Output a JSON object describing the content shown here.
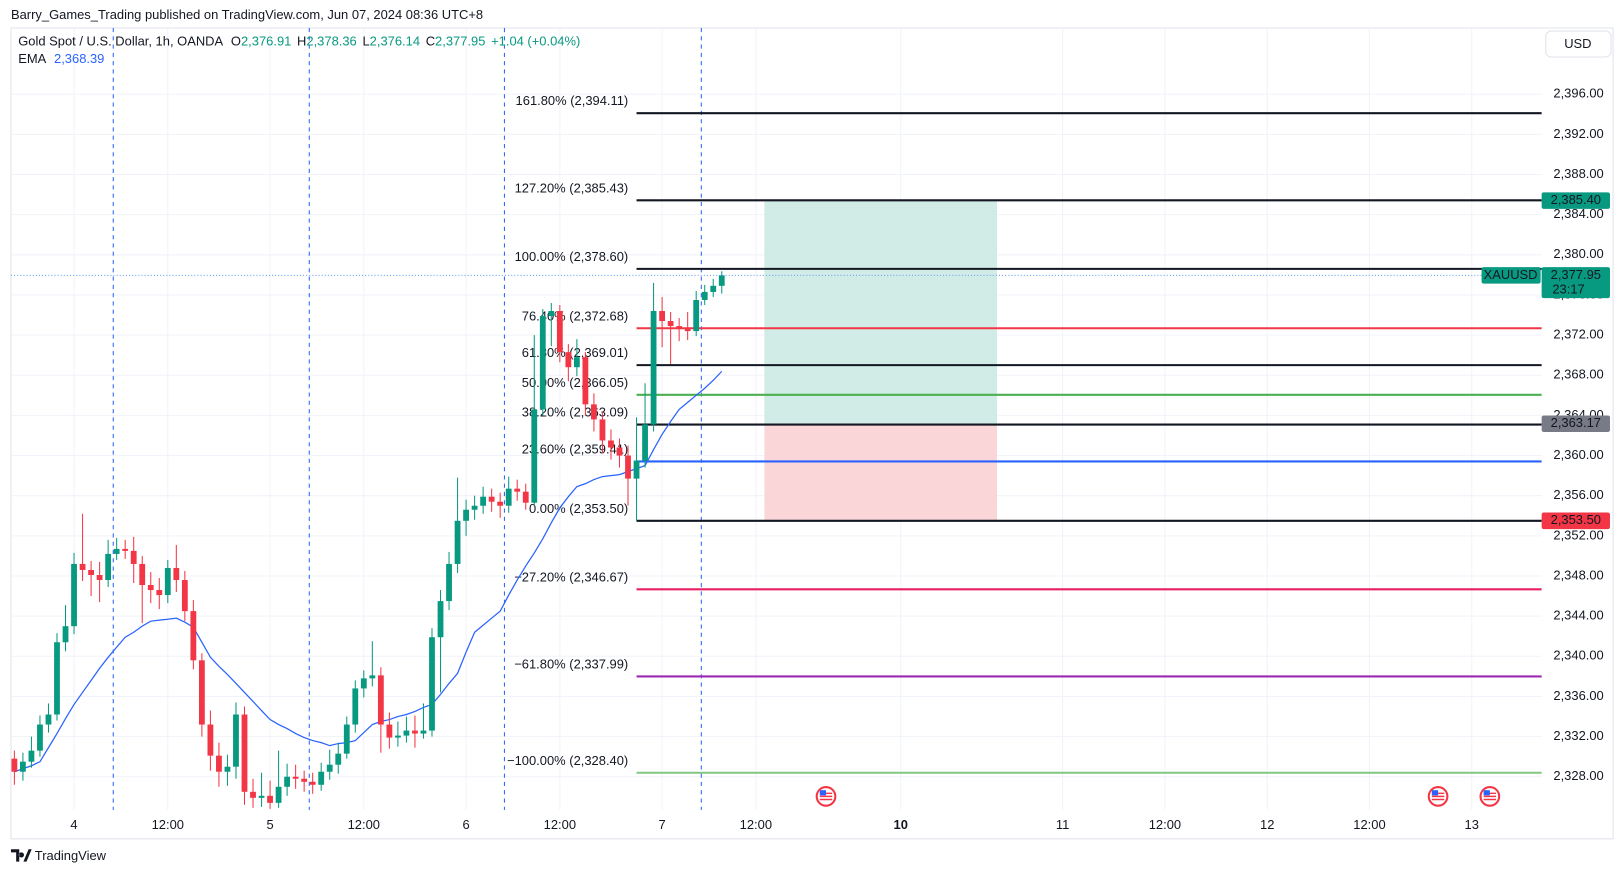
{
  "header": {
    "publisher": "Barry_Games_Trading published on TradingView.com, Jun 07, 2024 08:36 UTC+8",
    "currency": "USD",
    "brand": "TradingView"
  },
  "chart_data": {
    "type": "candlestick",
    "title": "Gold Spot / U.S. Dollar, 1h, OANDA",
    "ohlc_legend": [
      {
        "key": "O",
        "value": "2,376.91"
      },
      {
        "key": "H",
        "value": "2,378.36"
      },
      {
        "key": "L",
        "value": "2,376.14"
      },
      {
        "key": "C",
        "value": "2,377.95"
      }
    ],
    "change": "+1.04 (+0.04%)",
    "x": [
      -7,
      -6,
      -5,
      -4,
      -3,
      -2,
      -1,
      0,
      1,
      2,
      3,
      4,
      5,
      6,
      7,
      8,
      9,
      10,
      11,
      12,
      13,
      14,
      15,
      16,
      17,
      18,
      19,
      20,
      21,
      22,
      23,
      24,
      25,
      26,
      27,
      28,
      29,
      30,
      31,
      32,
      33,
      34,
      35,
      36,
      37,
      38,
      39,
      40,
      41,
      42,
      43,
      44,
      45,
      46,
      47,
      48,
      49,
      50,
      51,
      52,
      53,
      54,
      55,
      56,
      57,
      58,
      59,
      60,
      61,
      62,
      63,
      64,
      65,
      66,
      67,
      68,
      69,
      70,
      71,
      72,
      73,
      74,
      75,
      76
    ],
    "open": [
      2329.8,
      2328.5,
      2329.5,
      2330.6,
      2333.2,
      2334.2,
      2341.4,
      2343.0,
      2349.2,
      2348.6,
      2348.1,
      2347.6,
      2350.2,
      2350.7,
      2350.5,
      2349.2,
      2347.1,
      2346.6,
      2346.1,
      2348.8,
      2347.6,
      2344.5,
      2339.6,
      2333.2,
      2330.1,
      2328.5,
      2329.0,
      2334.2,
      2326.5,
      2325.9,
      2326.1,
      2325.4,
      2327.0,
      2328.0,
      2327.8,
      2327.5,
      2327.2,
      2328.5,
      2329.2,
      2330.3,
      2333.2,
      2336.8,
      2337.8,
      2338.1,
      2333.2,
      2331.9,
      2332.1,
      2332.6,
      2332.3,
      2332.6,
      2341.9,
      2345.5,
      2349.2,
      2353.5,
      2354.6,
      2355.0,
      2355.9,
      2355.4,
      2355.0,
      2356.7,
      2356.4,
      2355.3,
      2364.6,
      2373.9,
      2374.4,
      2370.3,
      2368.8,
      2369.8,
      2365.1,
      2363.6,
      2361.5,
      2360.8,
      2360.0,
      2357.7,
      2359.5,
      2363.1,
      2374.4,
      2373.4,
      2372.9,
      2372.6,
      2372.4,
      2375.5,
      2376.3,
      2376.91
    ],
    "high": [
      2330.6,
      2330.4,
      2332.0,
      2334.1,
      2335.3,
      2342.3,
      2345.1,
      2350.3,
      2354.2,
      2349.5,
      2349.4,
      2351.6,
      2351.8,
      2351.6,
      2351.9,
      2350.0,
      2348.4,
      2347.8,
      2349.6,
      2351.1,
      2348.5,
      2345.6,
      2340.3,
      2334.6,
      2331.4,
      2330.2,
      2335.4,
      2335.0,
      2327.8,
      2328.4,
      2327.6,
      2330.6,
      2329.3,
      2329.2,
      2328.6,
      2328.4,
      2329.4,
      2330.7,
      2331.4,
      2334.0,
      2337.6,
      2338.6,
      2341.5,
      2338.9,
      2334.4,
      2333.5,
      2334.0,
      2334.1,
      2335.3,
      2342.8,
      2346.6,
      2350.4,
      2357.8,
      2355.6,
      2356.0,
      2356.9,
      2356.7,
      2356.3,
      2357.9,
      2357.6,
      2357.2,
      2372.0,
      2374.6,
      2375.2,
      2375.0,
      2371.1,
      2371.6,
      2370.3,
      2366.2,
      2364.4,
      2362.6,
      2361.7,
      2361.0,
      2363.8,
      2367.2,
      2377.2,
      2375.8,
      2374.3,
      2373.7,
      2374.3,
      2376.4,
      2377.0,
      2377.6,
      2378.36
    ],
    "low": [
      2327.2,
      2327.6,
      2328.9,
      2330.0,
      2332.4,
      2333.6,
      2340.5,
      2342.2,
      2347.5,
      2346.0,
      2345.4,
      2346.9,
      2349.6,
      2349.7,
      2347.3,
      2343.3,
      2345.3,
      2344.7,
      2345.3,
      2346.4,
      2343.5,
      2338.7,
      2332.0,
      2328.6,
      2327.0,
      2327.1,
      2327.8,
      2325.2,
      2324.9,
      2325.0,
      2324.8,
      2324.9,
      2326.1,
      2326.8,
      2326.5,
      2326.3,
      2326.6,
      2327.7,
      2328.3,
      2329.8,
      2332.4,
      2335.9,
      2337.0,
      2330.4,
      2330.8,
      2331.0,
      2331.4,
      2330.9,
      2331.8,
      2332.0,
      2336.4,
      2344.6,
      2348.3,
      2352.0,
      2353.6,
      2354.2,
      2354.4,
      2353.8,
      2354.3,
      2355.5,
      2354.6,
      2355.0,
      2364.0,
      2370.9,
      2369.3,
      2367.4,
      2367.9,
      2364.0,
      2362.4,
      2360.2,
      2359.6,
      2358.8,
      2355.0,
      2353.5,
      2358.8,
      2362.4,
      2370.8,
      2369.1,
      2371.4,
      2371.5,
      2371.9,
      2375.0,
      2375.8,
      2376.14
    ],
    "close": [
      2328.5,
      2329.5,
      2330.6,
      2333.2,
      2334.2,
      2341.4,
      2343.0,
      2349.2,
      2348.6,
      2348.1,
      2347.6,
      2350.2,
      2350.7,
      2350.5,
      2349.2,
      2347.1,
      2346.6,
      2346.1,
      2348.8,
      2347.6,
      2344.5,
      2339.6,
      2333.2,
      2330.1,
      2328.5,
      2329.0,
      2334.2,
      2326.5,
      2325.9,
      2326.1,
      2325.4,
      2327.0,
      2328.0,
      2327.8,
      2327.5,
      2327.2,
      2328.5,
      2329.2,
      2330.3,
      2333.2,
      2336.8,
      2337.8,
      2338.1,
      2333.2,
      2331.9,
      2332.1,
      2332.6,
      2332.3,
      2332.6,
      2341.9,
      2345.5,
      2349.2,
      2353.5,
      2354.6,
      2355.0,
      2355.9,
      2355.4,
      2355.0,
      2356.7,
      2356.4,
      2355.3,
      2364.6,
      2373.9,
      2374.4,
      2370.3,
      2368.8,
      2369.8,
      2365.1,
      2363.6,
      2361.5,
      2360.8,
      2360.0,
      2357.7,
      2359.5,
      2363.1,
      2374.4,
      2373.4,
      2372.9,
      2372.6,
      2372.4,
      2375.5,
      2376.3,
      2376.91,
      2377.95
    ],
    "up_color": "#089981",
    "down_color": "#f23645",
    "series": [
      {
        "name": "EMA",
        "color": "#2962ff",
        "last_label": "2,368.39",
        "values": [
          2328.5,
          2328.8,
          2329.1,
          2329.5,
          2330.9,
          2332.3,
          2333.8,
          2335.2,
          2336.4,
          2337.6,
          2338.8,
          2339.9,
          2340.9,
          2341.9,
          2342.4,
          2343.0,
          2343.5,
          2343.6,
          2343.7,
          2343.8,
          2343.4,
          2342.9,
          2341.4,
          2339.9,
          2339.0,
          2338.2,
          2337.3,
          2336.4,
          2335.5,
          2334.6,
          2333.7,
          2333.2,
          2332.8,
          2332.3,
          2331.9,
          2331.6,
          2331.4,
          2331.1,
          2331.3,
          2331.4,
          2331.6,
          2332.4,
          2333.2,
          2333.5,
          2333.7,
          2334.0,
          2334.2,
          2334.5,
          2334.9,
          2335.2,
          2336.2,
          2337.3,
          2338.3,
          2340.4,
          2342.4,
          2343.1,
          2343.8,
          2344.5,
          2346.1,
          2347.6,
          2349.0,
          2350.3,
          2351.7,
          2353.3,
          2354.8,
          2355.9,
          2356.9,
          2357.2,
          2357.6,
          2357.9,
          2358.0,
          2358.1,
          2358.4,
          2358.7,
          2359.0,
          2360.6,
          2362.1,
          2363.4,
          2364.6,
          2365.3,
          2366.0,
          2366.7,
          2367.5,
          2368.39
        ]
      }
    ],
    "xlim": [
      -7.4,
      172.2
    ],
    "xticks": [
      {
        "value": 0,
        "label": "4"
      },
      {
        "value": 11,
        "label": "12:00"
      },
      {
        "value": 23,
        "label": "5"
      },
      {
        "value": 34,
        "label": "12:00"
      },
      {
        "value": 46,
        "label": "6"
      },
      {
        "value": 57,
        "label": "12:00"
      },
      {
        "value": 69,
        "label": "7"
      },
      {
        "value": 80,
        "label": "12:00"
      },
      {
        "value": 97,
        "label": "10"
      },
      {
        "value": 116,
        "label": "11"
      },
      {
        "value": 128,
        "label": "12:00"
      },
      {
        "value": 140,
        "label": "12"
      },
      {
        "value": 152,
        "label": "12:00"
      },
      {
        "value": 164,
        "label": "13"
      }
    ],
    "bold_xticks": [
      8
    ],
    "ylim": [
      2324.7,
      2402.6
    ],
    "yticks": [
      {
        "value": 2328,
        "label": "2,328.00"
      },
      {
        "value": 2332,
        "label": "2,332.00"
      },
      {
        "value": 2336,
        "label": "2,336.00"
      },
      {
        "value": 2340,
        "label": "2,340.00"
      },
      {
        "value": 2344,
        "label": "2,344.00"
      },
      {
        "value": 2348,
        "label": "2,348.00"
      },
      {
        "value": 2352,
        "label": "2,352.00"
      },
      {
        "value": 2356,
        "label": "2,356.00"
      },
      {
        "value": 2360,
        "label": "2,360.00"
      },
      {
        "value": 2364,
        "label": "2,364.00"
      },
      {
        "value": 2368,
        "label": "2,368.00"
      },
      {
        "value": 2372,
        "label": "2,372.00"
      },
      {
        "value": 2376,
        "label": "2,376.00"
      },
      {
        "value": 2380,
        "label": "2,380.00"
      },
      {
        "value": 2384,
        "label": "2,384.00"
      },
      {
        "value": 2388,
        "label": "2,388.00"
      },
      {
        "value": 2392,
        "label": "2,392.00"
      },
      {
        "value": 2396,
        "label": "2,396.00"
      }
    ],
    "grid": true,
    "vlines": [
      4.6,
      27.6,
      50.5,
      73.6
    ],
    "fib": {
      "x_start": 66.0,
      "x_end": 172.2,
      "levels": [
        {
          "label": "161.80% (2,394.11)",
          "value": 2394.11,
          "color": "#131722"
        },
        {
          "label": "127.20% (2,385.43)",
          "value": 2385.43,
          "color": "#131722"
        },
        {
          "label": "100.00% (2,378.60)",
          "value": 2378.6,
          "color": "#131722"
        },
        {
          "label": "76.40% (2,372.68)",
          "value": 2372.68,
          "color": "#f23645"
        },
        {
          "label": "61.80% (2,369.01)",
          "value": 2369.01,
          "color": "#131722"
        },
        {
          "label": "50.00% (2,366.05)",
          "value": 2366.05,
          "color": "#4caf50"
        },
        {
          "label": "38.20% (2,363.09)",
          "value": 2363.09,
          "color": "#131722"
        },
        {
          "label": "23.60% (2,359.41)",
          "value": 2359.41,
          "color": "#2962ff"
        },
        {
          "label": "0.00% (2,353.50)",
          "value": 2353.5,
          "color": "#131722"
        },
        {
          "label": "−27.20% (2,346.67)",
          "value": 2346.67,
          "color": "#e91e63"
        },
        {
          "label": "−61.80% (2,337.99)",
          "value": 2337.99,
          "color": "#9c27b0"
        },
        {
          "label": "−100.00% (2,328.40)",
          "value": 2328.4,
          "color": "#81c784"
        }
      ]
    },
    "position": {
      "x_start": 81.0,
      "x_end": 108.3,
      "target": 2385.4,
      "entry": 2363.17,
      "stop": 2353.5,
      "profit_color": "#d1ebe6",
      "loss_color": "#fbd6d9"
    },
    "price_tags": [
      {
        "label": "2,385.40",
        "value": 2385.4,
        "color": "#089981"
      },
      {
        "label": "2,363.17",
        "value": 2363.17,
        "color": "#787b86"
      },
      {
        "label": "2,353.50",
        "value": 2353.5,
        "color": "#f23645"
      }
    ],
    "last_price": {
      "symbol": "XAUUSD",
      "label": "2,377.95",
      "value": 2377.95,
      "countdown": "23:17",
      "color": "#089981"
    }
  }
}
